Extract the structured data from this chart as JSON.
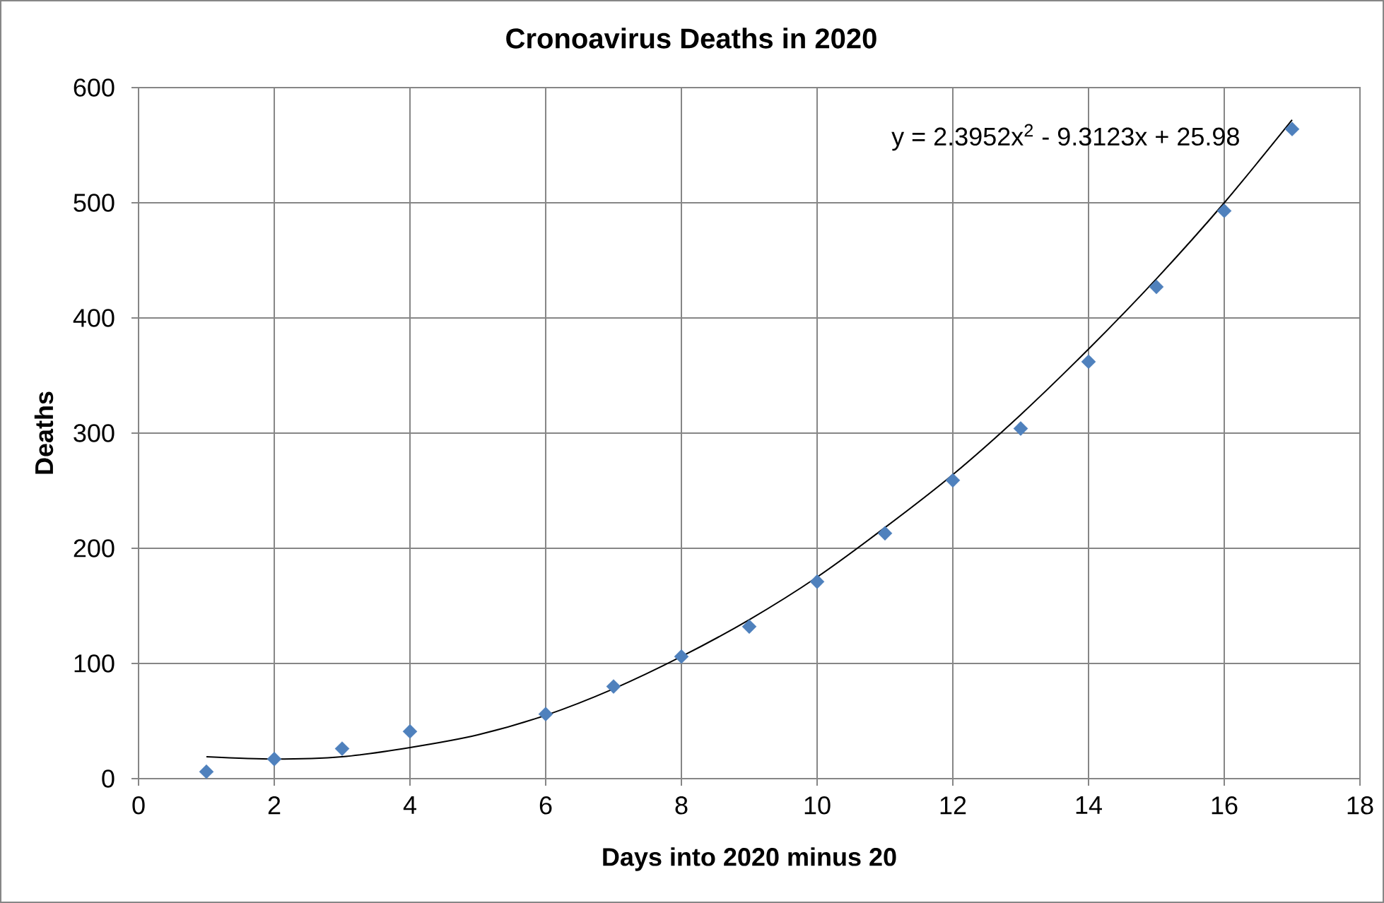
{
  "chart_data": {
    "type": "scatter",
    "title": "Cronoavirus Deaths in 2020",
    "xlabel": "Days into 2020 minus 20",
    "ylabel": "Deaths",
    "annotations": [
      "y = 2.3952x$^{2}$ - 9.3123x + 25.98"
    ],
    "series": [
      {
        "color": "#4f81bd",
        "marker": "diamond",
        "x": [
          1,
          2,
          3,
          4,
          6,
          7,
          8,
          9,
          10,
          11,
          12,
          13,
          14,
          15,
          16,
          17
        ],
        "values": [
          6,
          17,
          26,
          41,
          56,
          80,
          106,
          132,
          171,
          213,
          259,
          304,
          362,
          427,
          493,
          564
        ]
      },
      {
        "type": "line",
        "color": "#000000",
        "marker": "none",
        "x": [
          1,
          2,
          3,
          4,
          5,
          6,
          7,
          8,
          9,
          10,
          11,
          12,
          13,
          14,
          15,
          16,
          17
        ],
        "values": [
          19,
          17,
          19,
          27,
          38,
          55,
          78,
          106,
          138,
          175,
          218,
          264,
          316,
          373,
          434,
          500,
          572
        ]
      }
    ],
    "xlim": [
      0,
      18
    ],
    "xticks": [
      0,
      2,
      4,
      6,
      8,
      10,
      12,
      14,
      16,
      18
    ],
    "ylim": [
      0,
      600
    ],
    "yticks": [
      0,
      100,
      200,
      300,
      400,
      500,
      600
    ],
    "grid": true
  }
}
